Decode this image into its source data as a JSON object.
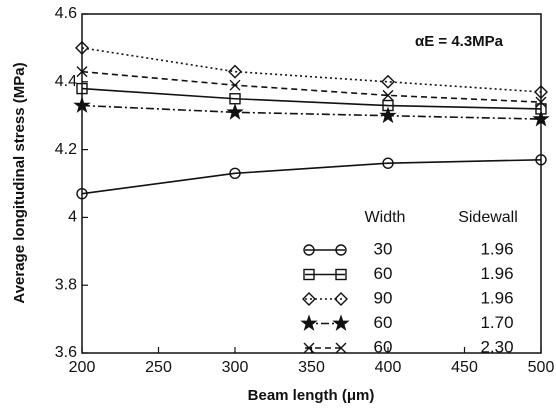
{
  "chart_data": {
    "type": "line",
    "xlabel": "Beam length (μm)",
    "ylabel": "Average longitudinal stress (MPa)",
    "annotation": "αE = 4.3MPa",
    "x": [
      200,
      300,
      400,
      500
    ],
    "xlim": [
      200,
      500
    ],
    "xticks": [
      200,
      250,
      300,
      350,
      400,
      450,
      500
    ],
    "ylim": [
      3.6,
      4.6
    ],
    "yticks": [
      3.6,
      3.8,
      4,
      4.2,
      4.4,
      4.6
    ],
    "legend_headers": [
      "Width",
      "Sidewall"
    ],
    "series": [
      {
        "width": "30",
        "sidewall": "1.96",
        "marker": "circle",
        "dash": "solid",
        "color": "#111111",
        "values": [
          4.07,
          4.13,
          4.16,
          4.17
        ]
      },
      {
        "width": "60",
        "sidewall": "1.96",
        "marker": "square",
        "dash": "solid",
        "color": "#111111",
        "values": [
          4.38,
          4.35,
          4.33,
          4.32
        ]
      },
      {
        "width": "90",
        "sidewall": "1.96",
        "marker": "diamond",
        "dash": "dotted",
        "color": "#111111",
        "values": [
          4.5,
          4.43,
          4.4,
          4.37
        ]
      },
      {
        "width": "60",
        "sidewall": "1.70",
        "marker": "star",
        "dash": "dashdot",
        "color": "#111111",
        "values": [
          4.33,
          4.31,
          4.3,
          4.29
        ]
      },
      {
        "width": "60",
        "sidewall": "2.30",
        "marker": "x",
        "dash": "dashed",
        "color": "#111111",
        "values": [
          4.43,
          4.39,
          4.36,
          4.34
        ]
      }
    ]
  }
}
